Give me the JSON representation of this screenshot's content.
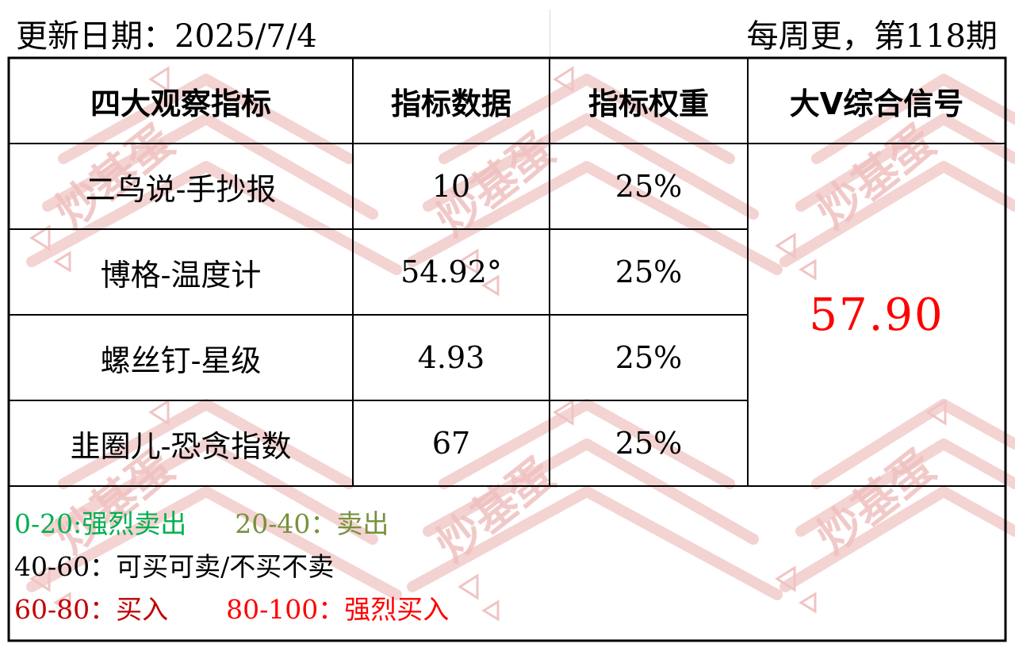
{
  "header": {
    "update_date": "更新日期：2025/7/4",
    "issue": "每周更，第118期"
  },
  "table": {
    "columns": [
      "四大观察指标",
      "指标数据",
      "指标权重",
      "大V综合信号"
    ],
    "rows": [
      {
        "indicator": "二鸟说-手抄报",
        "value": "10",
        "weight": "25%"
      },
      {
        "indicator": "博格-温度计",
        "value": "54.92°",
        "weight": "25%"
      },
      {
        "indicator": "螺丝钉-星级",
        "value": "4.93",
        "weight": "25%"
      },
      {
        "indicator": "韭圈儿-恐贪指数",
        "value": "67",
        "weight": "25%"
      }
    ],
    "composite_signal": "57.90"
  },
  "legend": {
    "strong_sell": "0-20:强烈卖出",
    "sell": "20-40：卖出",
    "hold": "40-60：可买可卖/不买不卖",
    "buy": "60-80：买入",
    "strong_buy": "80-100：强烈买入"
  },
  "watermark": {
    "text": "炒基蛋"
  },
  "colors": {
    "signal": "#ff0000",
    "strong_sell": "#00b050",
    "sell": "#76923c",
    "hold": "#000000",
    "buy": "#c00000",
    "strong_buy": "#ff0000",
    "watermark": "#e4a8a8"
  }
}
